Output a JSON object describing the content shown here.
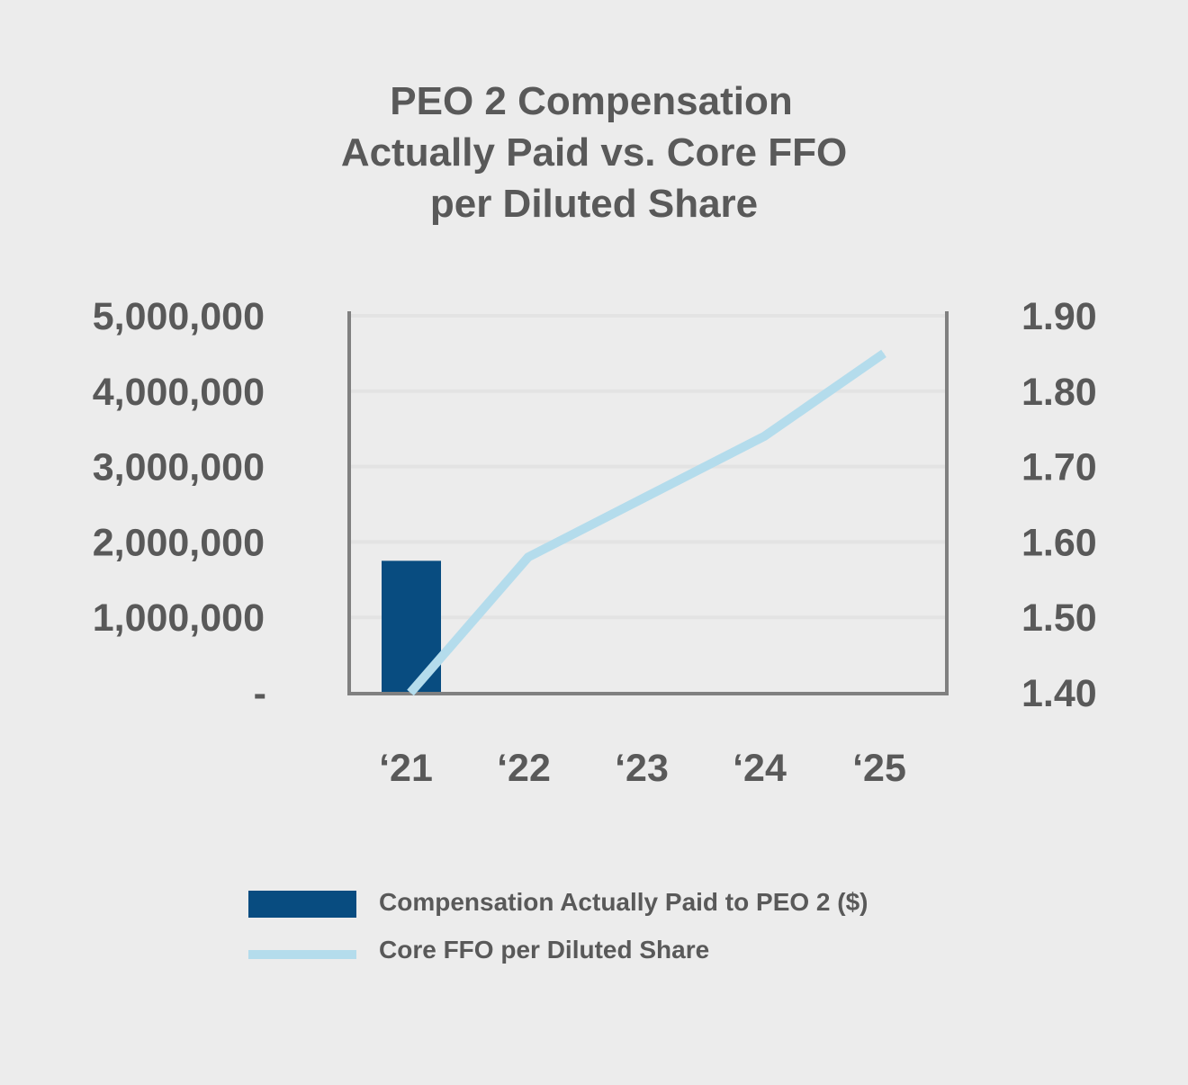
{
  "chart_data": {
    "type": "bar+line",
    "title_lines": [
      "PEO 2 Compensation",
      "Actually Paid vs. Core FFO",
      "per Diluted Share"
    ],
    "categories": [
      "‘21",
      "‘22",
      "‘23",
      "‘24",
      "‘25"
    ],
    "series": [
      {
        "name": "Compensation Actually Paid to PEO 2 ($)",
        "type": "bar",
        "axis": "left",
        "color": "#084c80",
        "values": [
          1750000,
          null,
          null,
          null,
          null
        ]
      },
      {
        "name": "Core FFO per Diluted Share",
        "type": "line",
        "axis": "right",
        "color": "#b4dcec",
        "values": [
          1.4,
          1.58,
          1.66,
          1.74,
          1.85
        ]
      }
    ],
    "y_left": {
      "min": 0,
      "max": 5000000,
      "ticks": [
        {
          "value": 0,
          "label": "-"
        },
        {
          "value": 1000000,
          "label": "1,000,000"
        },
        {
          "value": 2000000,
          "label": "2,000,000"
        },
        {
          "value": 3000000,
          "label": "3,000,000"
        },
        {
          "value": 4000000,
          "label": "4,000,000"
        },
        {
          "value": 5000000,
          "label": "5,000,000"
        }
      ]
    },
    "y_right": {
      "min": 1.4,
      "max": 1.9,
      "ticks": [
        {
          "value": 1.4,
          "label": "1.40"
        },
        {
          "value": 1.5,
          "label": "1.50"
        },
        {
          "value": 1.6,
          "label": "1.60"
        },
        {
          "value": 1.7,
          "label": "1.70"
        },
        {
          "value": 1.8,
          "label": "1.80"
        },
        {
          "value": 1.9,
          "label": "1.90"
        }
      ]
    },
    "grid": true,
    "legend_position": "bottom"
  },
  "colors": {
    "background": "#ececec",
    "text": "#595959",
    "axis": "#808080",
    "grid": "#e3e3e3",
    "bar": "#084c80",
    "line": "#b4dcec"
  }
}
